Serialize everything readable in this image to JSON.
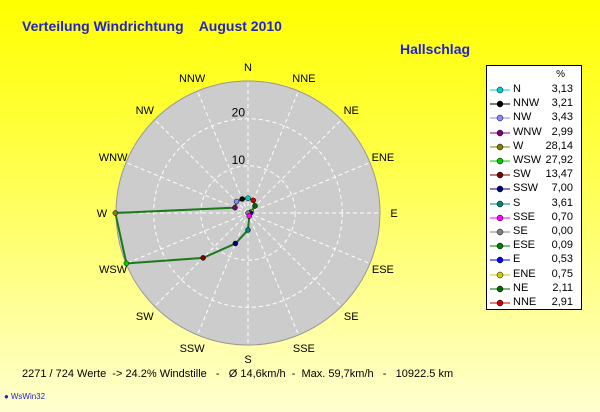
{
  "title": "Verteilung Windrichtung    August 2010",
  "station": "Hallschlag",
  "footer": "2271 / 724 Werte  -> 24.2% Windstille   -   Ø 14,6km/h  -  Max. 59,7km/h   -   10922.5 km",
  "brand": "WsWin32",
  "legend_header": "%",
  "colors": {
    "series_line": "#1a7a1a",
    "axis_text": "#000000",
    "title": "#2222cc",
    "plot_fill": "#cccccc"
  },
  "chart_data": {
    "type": "radar",
    "title": "Verteilung Windrichtung    August 2010",
    "radial_ticks": [
      10,
      20
    ],
    "radial_max": 28,
    "directions": [
      "N",
      "NNE",
      "NE",
      "ENE",
      "E",
      "ESE",
      "SE",
      "SSE",
      "S",
      "SSW",
      "SW",
      "WSW",
      "W",
      "WNW",
      "NW",
      "NNW"
    ],
    "series": [
      {
        "values": [
          3.13,
          2.91,
          2.11,
          0.75,
          0.53,
          0.09,
          0.0,
          0.7,
          3.61,
          7.0,
          13.47,
          27.92,
          28.14,
          2.99,
          3.43,
          3.21
        ]
      }
    ],
    "legend": [
      {
        "label": "N",
        "value": "3,13",
        "color": "#00cccc"
      },
      {
        "label": "NNW",
        "value": "3,21",
        "color": "#000000"
      },
      {
        "label": "NW",
        "value": "3,43",
        "color": "#8888ff"
      },
      {
        "label": "WNW",
        "value": "2,99",
        "color": "#800080"
      },
      {
        "label": "W",
        "value": "28,14",
        "color": "#808000"
      },
      {
        "label": "WSW",
        "value": "27,92",
        "color": "#00cc00"
      },
      {
        "label": "SW",
        "value": "13,47",
        "color": "#800000"
      },
      {
        "label": "SSW",
        "value": "7,00",
        "color": "#000080"
      },
      {
        "label": "S",
        "value": "3,61",
        "color": "#008080"
      },
      {
        "label": "SSE",
        "value": "0,70",
        "color": "#ff00ff"
      },
      {
        "label": "SE",
        "value": "0,00",
        "color": "#808080"
      },
      {
        "label": "ESE",
        "value": "0,09",
        "color": "#008000"
      },
      {
        "label": "E",
        "value": "0,53",
        "color": "#0000ff"
      },
      {
        "label": "ENE",
        "value": "0,75",
        "color": "#cccc00"
      },
      {
        "label": "NE",
        "value": "2,11",
        "color": "#006600"
      },
      {
        "label": "NNE",
        "value": "2,91",
        "color": "#cc0000"
      }
    ]
  }
}
